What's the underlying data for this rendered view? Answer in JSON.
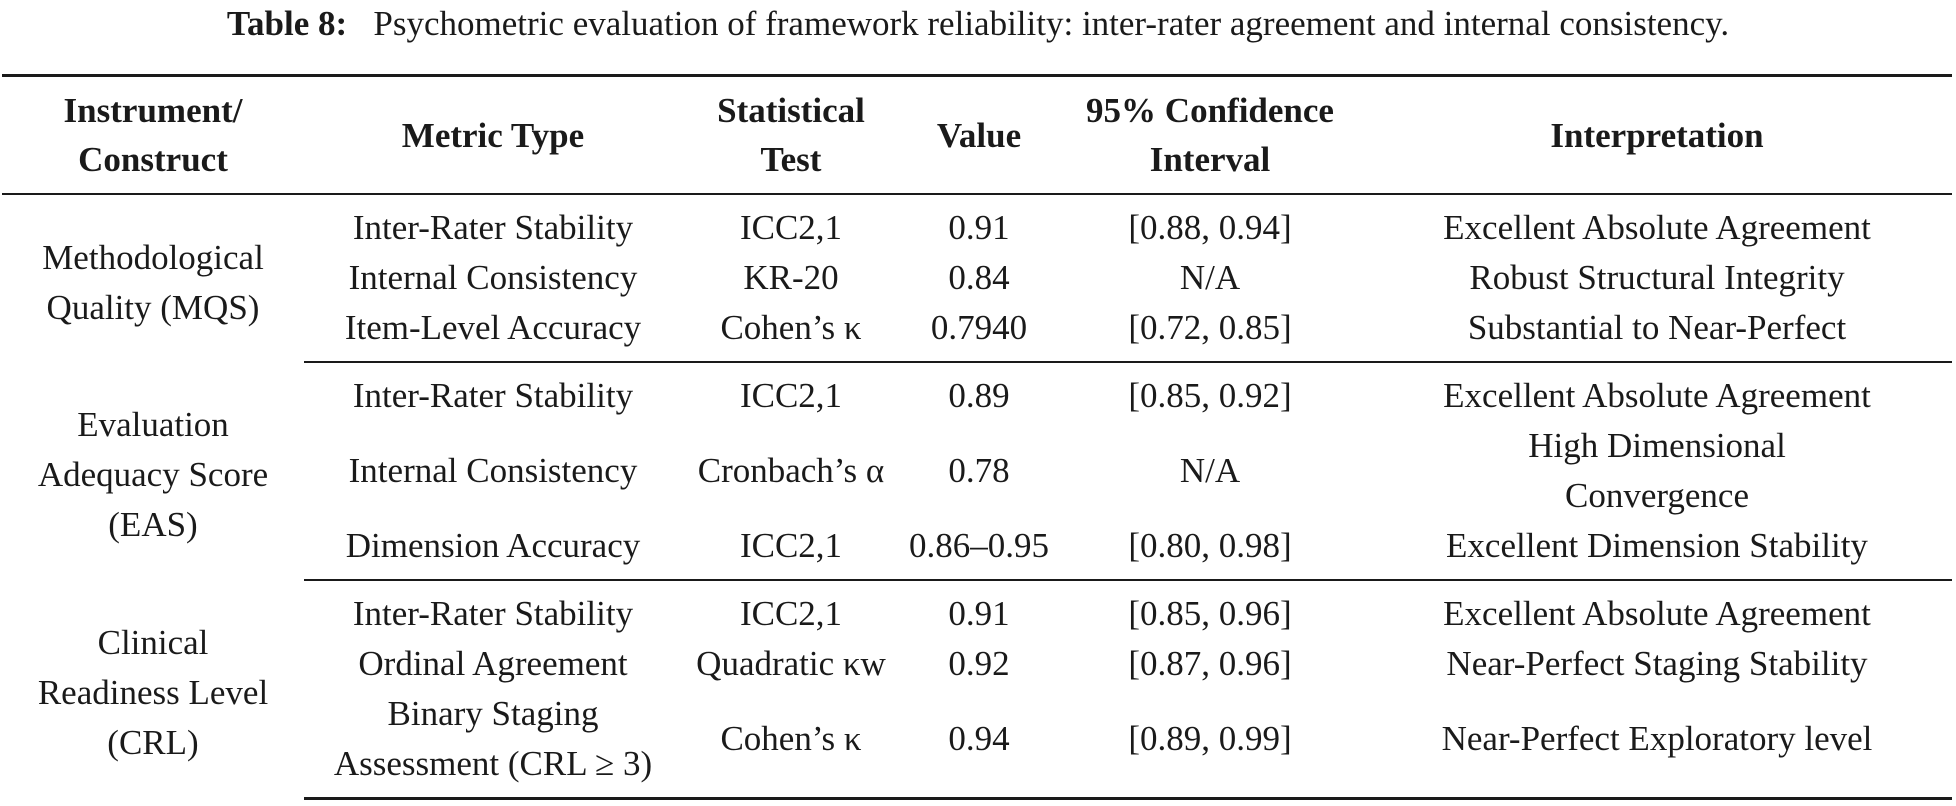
{
  "caption": {
    "label": "Table 8:",
    "text": "Psychometric evaluation of framework reliability: inter-rater agreement and internal consistency."
  },
  "table": {
    "headers": [
      [
        "Instrument/",
        "Construct"
      ],
      [
        "Metric Type"
      ],
      [
        "Statistical",
        "Test"
      ],
      [
        "Value"
      ],
      [
        "95% Confidence",
        "Interval"
      ],
      [
        "Interpretation"
      ]
    ],
    "groups": [
      {
        "construct": [
          "Methodological",
          "Quality (MQS)"
        ],
        "rows": [
          {
            "metric": [
              "Inter-Rater Stability"
            ],
            "test": "ICC2,1",
            "value": "0.91",
            "ci": "[0.88, 0.94]",
            "interpretation": [
              "Excellent Absolute Agreement"
            ]
          },
          {
            "metric": [
              "Internal Consistency"
            ],
            "test": "KR-20",
            "value": "0.84",
            "ci": "N/A",
            "interpretation": [
              "Robust Structural Integrity"
            ]
          },
          {
            "metric": [
              "Item-Level Accuracy"
            ],
            "test": "Cohen’s κ",
            "value": "0.7940",
            "ci": "[0.72, 0.85]",
            "interpretation": [
              "Substantial to Near-Perfect"
            ]
          }
        ]
      },
      {
        "construct": [
          "Evaluation",
          "Adequacy Score",
          "(EAS)"
        ],
        "rows": [
          {
            "metric": [
              "Inter-Rater Stability"
            ],
            "test": "ICC2,1",
            "value": "0.89",
            "ci": "[0.85, 0.92]",
            "interpretation": [
              "Excellent Absolute Agreement"
            ]
          },
          {
            "metric": [
              "Internal Consistency"
            ],
            "test": "Cronbach’s α",
            "value": "0.78",
            "ci": "N/A",
            "interpretation": [
              "High Dimensional",
              "Convergence"
            ]
          },
          {
            "metric": [
              "Dimension Accuracy"
            ],
            "test": "ICC2,1",
            "value": "0.86–0.95",
            "ci": "[0.80, 0.98]",
            "interpretation": [
              "Excellent Dimension Stability"
            ]
          }
        ]
      },
      {
        "construct": [
          "Clinical",
          "Readiness Level",
          "(CRL)"
        ],
        "rows": [
          {
            "metric": [
              "Inter-Rater Stability"
            ],
            "test": "ICC2,1",
            "value": "0.91",
            "ci": "[0.85, 0.96]",
            "interpretation": [
              "Excellent Absolute Agreement"
            ]
          },
          {
            "metric": [
              "Ordinal Agreement"
            ],
            "test": "Quadratic κw",
            "value": "0.92",
            "ci": "[0.87, 0.96]",
            "interpretation": [
              "Near-Perfect Staging Stability"
            ]
          },
          {
            "metric": [
              "Binary Staging",
              "Assessment (CRL ≥ 3)"
            ],
            "test": "Cohen’s κ",
            "value": "0.94",
            "ci": "[0.89, 0.99]",
            "interpretation": [
              "Near-Perfect Exploratory level"
            ]
          }
        ]
      }
    ]
  }
}
